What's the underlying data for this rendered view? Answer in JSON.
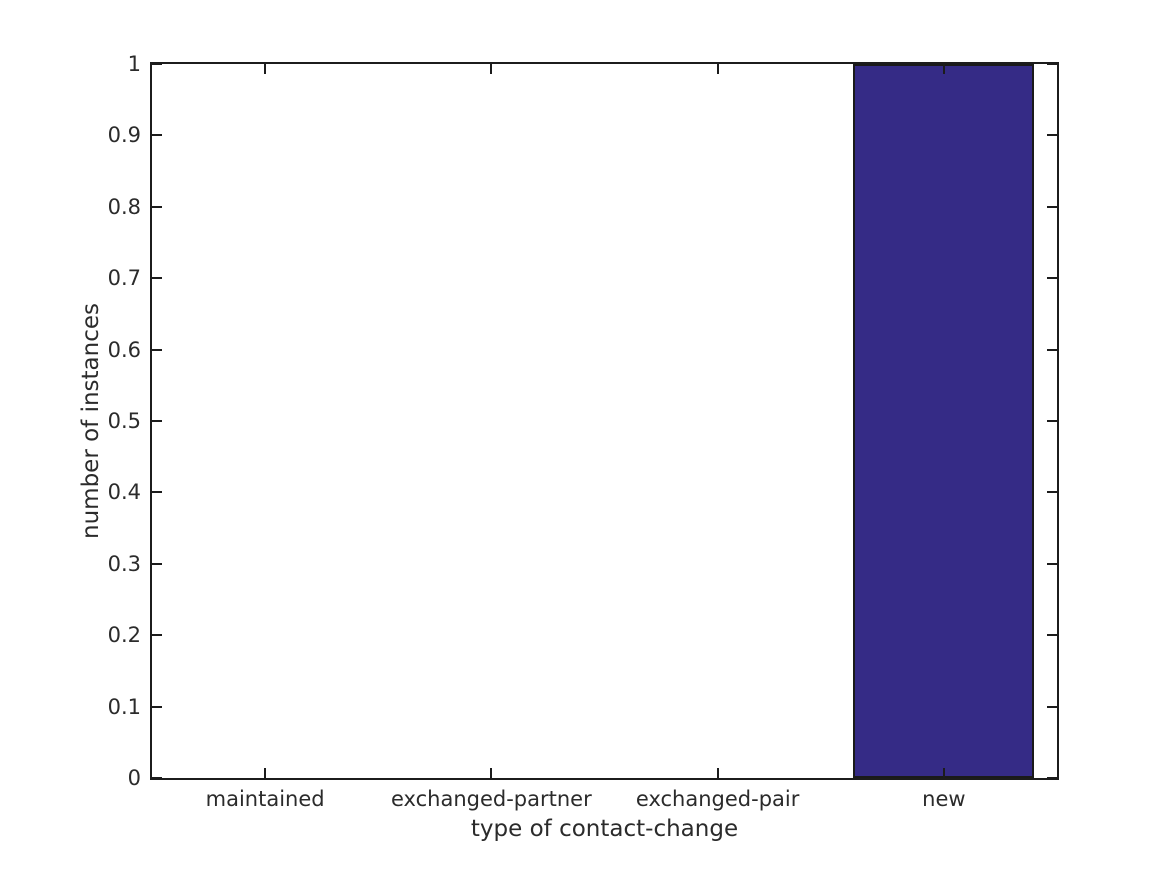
{
  "chart_data": {
    "type": "bar",
    "title": "",
    "categories": [
      "maintained",
      "exchanged-partner",
      "exchanged-pair",
      "new"
    ],
    "values": [
      0,
      0,
      0,
      1
    ],
    "xlabel": "type of contact-change",
    "ylabel": "number of instances",
    "ylim": [
      0,
      1
    ],
    "ytick_values": [
      0,
      0.1,
      0.2,
      0.3,
      0.4,
      0.5,
      0.6,
      0.7,
      0.8,
      0.9,
      1
    ],
    "ytick_labels": [
      "0",
      "0.1",
      "0.2",
      "0.3",
      "0.4",
      "0.5",
      "0.6",
      "0.7",
      "0.8",
      "0.9",
      "1"
    ],
    "bar_width_fraction": 0.8,
    "bar_color": "#352b86",
    "bar_edge_color": "#1a1a1a",
    "axis_color": "#1c1c1c",
    "text_color": "#2b2b2b",
    "grid": false,
    "legend": null
  }
}
